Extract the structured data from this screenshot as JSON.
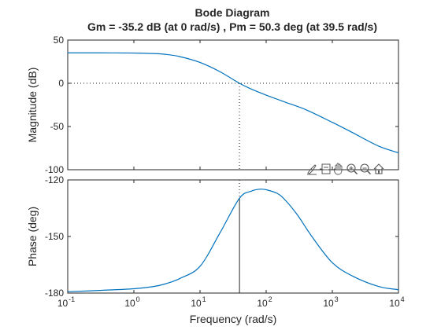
{
  "colors": {
    "curve": "#0072BD",
    "axes": "#262626",
    "marker": "#262626"
  },
  "chart_data": {
    "type": "line",
    "title": "Bode Diagram",
    "subtitle": "Gm = -35.2 dB (at 0 rad/s) ,  Pm = 50.3 deg (at 39.5 rad/s)",
    "xlabel": "Frequency  (rad/s)",
    "xscale": "log",
    "xlim": [
      0.1,
      10000
    ],
    "x_ticks": [
      {
        "value": 0.1,
        "base": "10",
        "exp": "-1"
      },
      {
        "value": 1,
        "base": "10",
        "exp": "0"
      },
      {
        "value": 10,
        "base": "10",
        "exp": "1"
      },
      {
        "value": 100,
        "base": "10",
        "exp": "2"
      },
      {
        "value": 1000,
        "base": "10",
        "exp": "3"
      },
      {
        "value": 10000,
        "base": "10",
        "exp": "4"
      }
    ],
    "crossover_frequency": 39.5,
    "magnitude": {
      "ylabel": "Magnitude (dB)",
      "ylim": [
        -100,
        50
      ],
      "y_ticks": [
        {
          "value": 50,
          "label": "50"
        },
        {
          "value": 0,
          "label": "0"
        },
        {
          "value": -50,
          "label": "-50"
        },
        {
          "value": -100,
          "label": "-100"
        }
      ],
      "reference_line": 0,
      "x": [
        0.1,
        0.3,
        1,
        2,
        3,
        5,
        10,
        20,
        39.5,
        60,
        100,
        200,
        400,
        1000,
        2000,
        5000,
        10000
      ],
      "y": [
        35.2,
        35.2,
        35,
        34.4,
        33.5,
        30.8,
        24.1,
        13.4,
        0,
        -6.8,
        -13.7,
        -22.2,
        -30.6,
        -45.2,
        -56.9,
        -72.7,
        -80.4
      ]
    },
    "phase": {
      "ylabel": "Phase (deg)",
      "ylim": [
        -180,
        -120
      ],
      "y_ticks": [
        {
          "value": -120,
          "label": "-120"
        },
        {
          "value": -150,
          "label": "-150"
        },
        {
          "value": -180,
          "label": "-180"
        }
      ],
      "x": [
        0.1,
        0.3,
        1,
        2,
        3,
        5,
        10,
        20,
        39.5,
        60,
        80,
        100,
        150,
        200,
        300,
        500,
        1000,
        2000,
        5000,
        10000
      ],
      "y": [
        -179.3,
        -178.6,
        -177.7,
        -176.5,
        -175.1,
        -172.2,
        -165.8,
        -148.1,
        -129.7,
        -125.9,
        -124.9,
        -125.2,
        -127.3,
        -131.2,
        -138.8,
        -150.4,
        -163.9,
        -170.9,
        -176.5,
        -178.2
      ]
    }
  },
  "toolbar": {
    "icons": [
      "brush-icon",
      "data-tip-icon",
      "pan-icon",
      "zoom-in-icon",
      "zoom-out-icon",
      "home-icon"
    ]
  }
}
